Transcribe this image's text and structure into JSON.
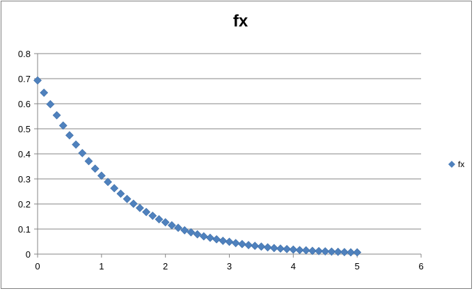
{
  "chart_data": {
    "type": "scatter",
    "title": "fx",
    "xlabel": "",
    "ylabel": "",
    "xlim": [
      0,
      6
    ],
    "ylim": [
      0,
      0.8
    ],
    "xticks": [
      0,
      1,
      2,
      3,
      4,
      5,
      6
    ],
    "yticks": [
      0,
      0.1,
      0.2,
      0.3,
      0.4,
      0.5,
      0.6,
      0.7,
      0.8
    ],
    "grid": "horizontal",
    "legend_position": "right",
    "color": "#4f81bd",
    "series": [
      {
        "name": "fx",
        "x": [
          0,
          0.1,
          0.2,
          0.3,
          0.4,
          0.5,
          0.6,
          0.7,
          0.8,
          0.9,
          1.0,
          1.1,
          1.2,
          1.3,
          1.4,
          1.5,
          1.6,
          1.7,
          1.8,
          1.9,
          2.0,
          2.1,
          2.2,
          2.3,
          2.4,
          2.5,
          2.6,
          2.7,
          2.8,
          2.9,
          3.0,
          3.1,
          3.2,
          3.3,
          3.4,
          3.5,
          3.6,
          3.7,
          3.8,
          3.9,
          4.0,
          4.1,
          4.2,
          4.3,
          4.4,
          4.5,
          4.6,
          4.7,
          4.8,
          4.9,
          5.0
        ],
        "y": [
          0.693,
          0.644,
          0.598,
          0.554,
          0.513,
          0.474,
          0.437,
          0.403,
          0.371,
          0.341,
          0.313,
          0.288,
          0.263,
          0.241,
          0.22,
          0.201,
          0.184,
          0.168,
          0.153,
          0.139,
          0.127,
          0.115,
          0.105,
          0.095,
          0.087,
          0.079,
          0.071,
          0.065,
          0.059,
          0.053,
          0.049,
          0.044,
          0.04,
          0.036,
          0.033,
          0.03,
          0.027,
          0.024,
          0.022,
          0.02,
          0.018,
          0.016,
          0.015,
          0.013,
          0.012,
          0.011,
          0.01,
          0.009,
          0.008,
          0.007,
          0.007
        ]
      }
    ]
  }
}
